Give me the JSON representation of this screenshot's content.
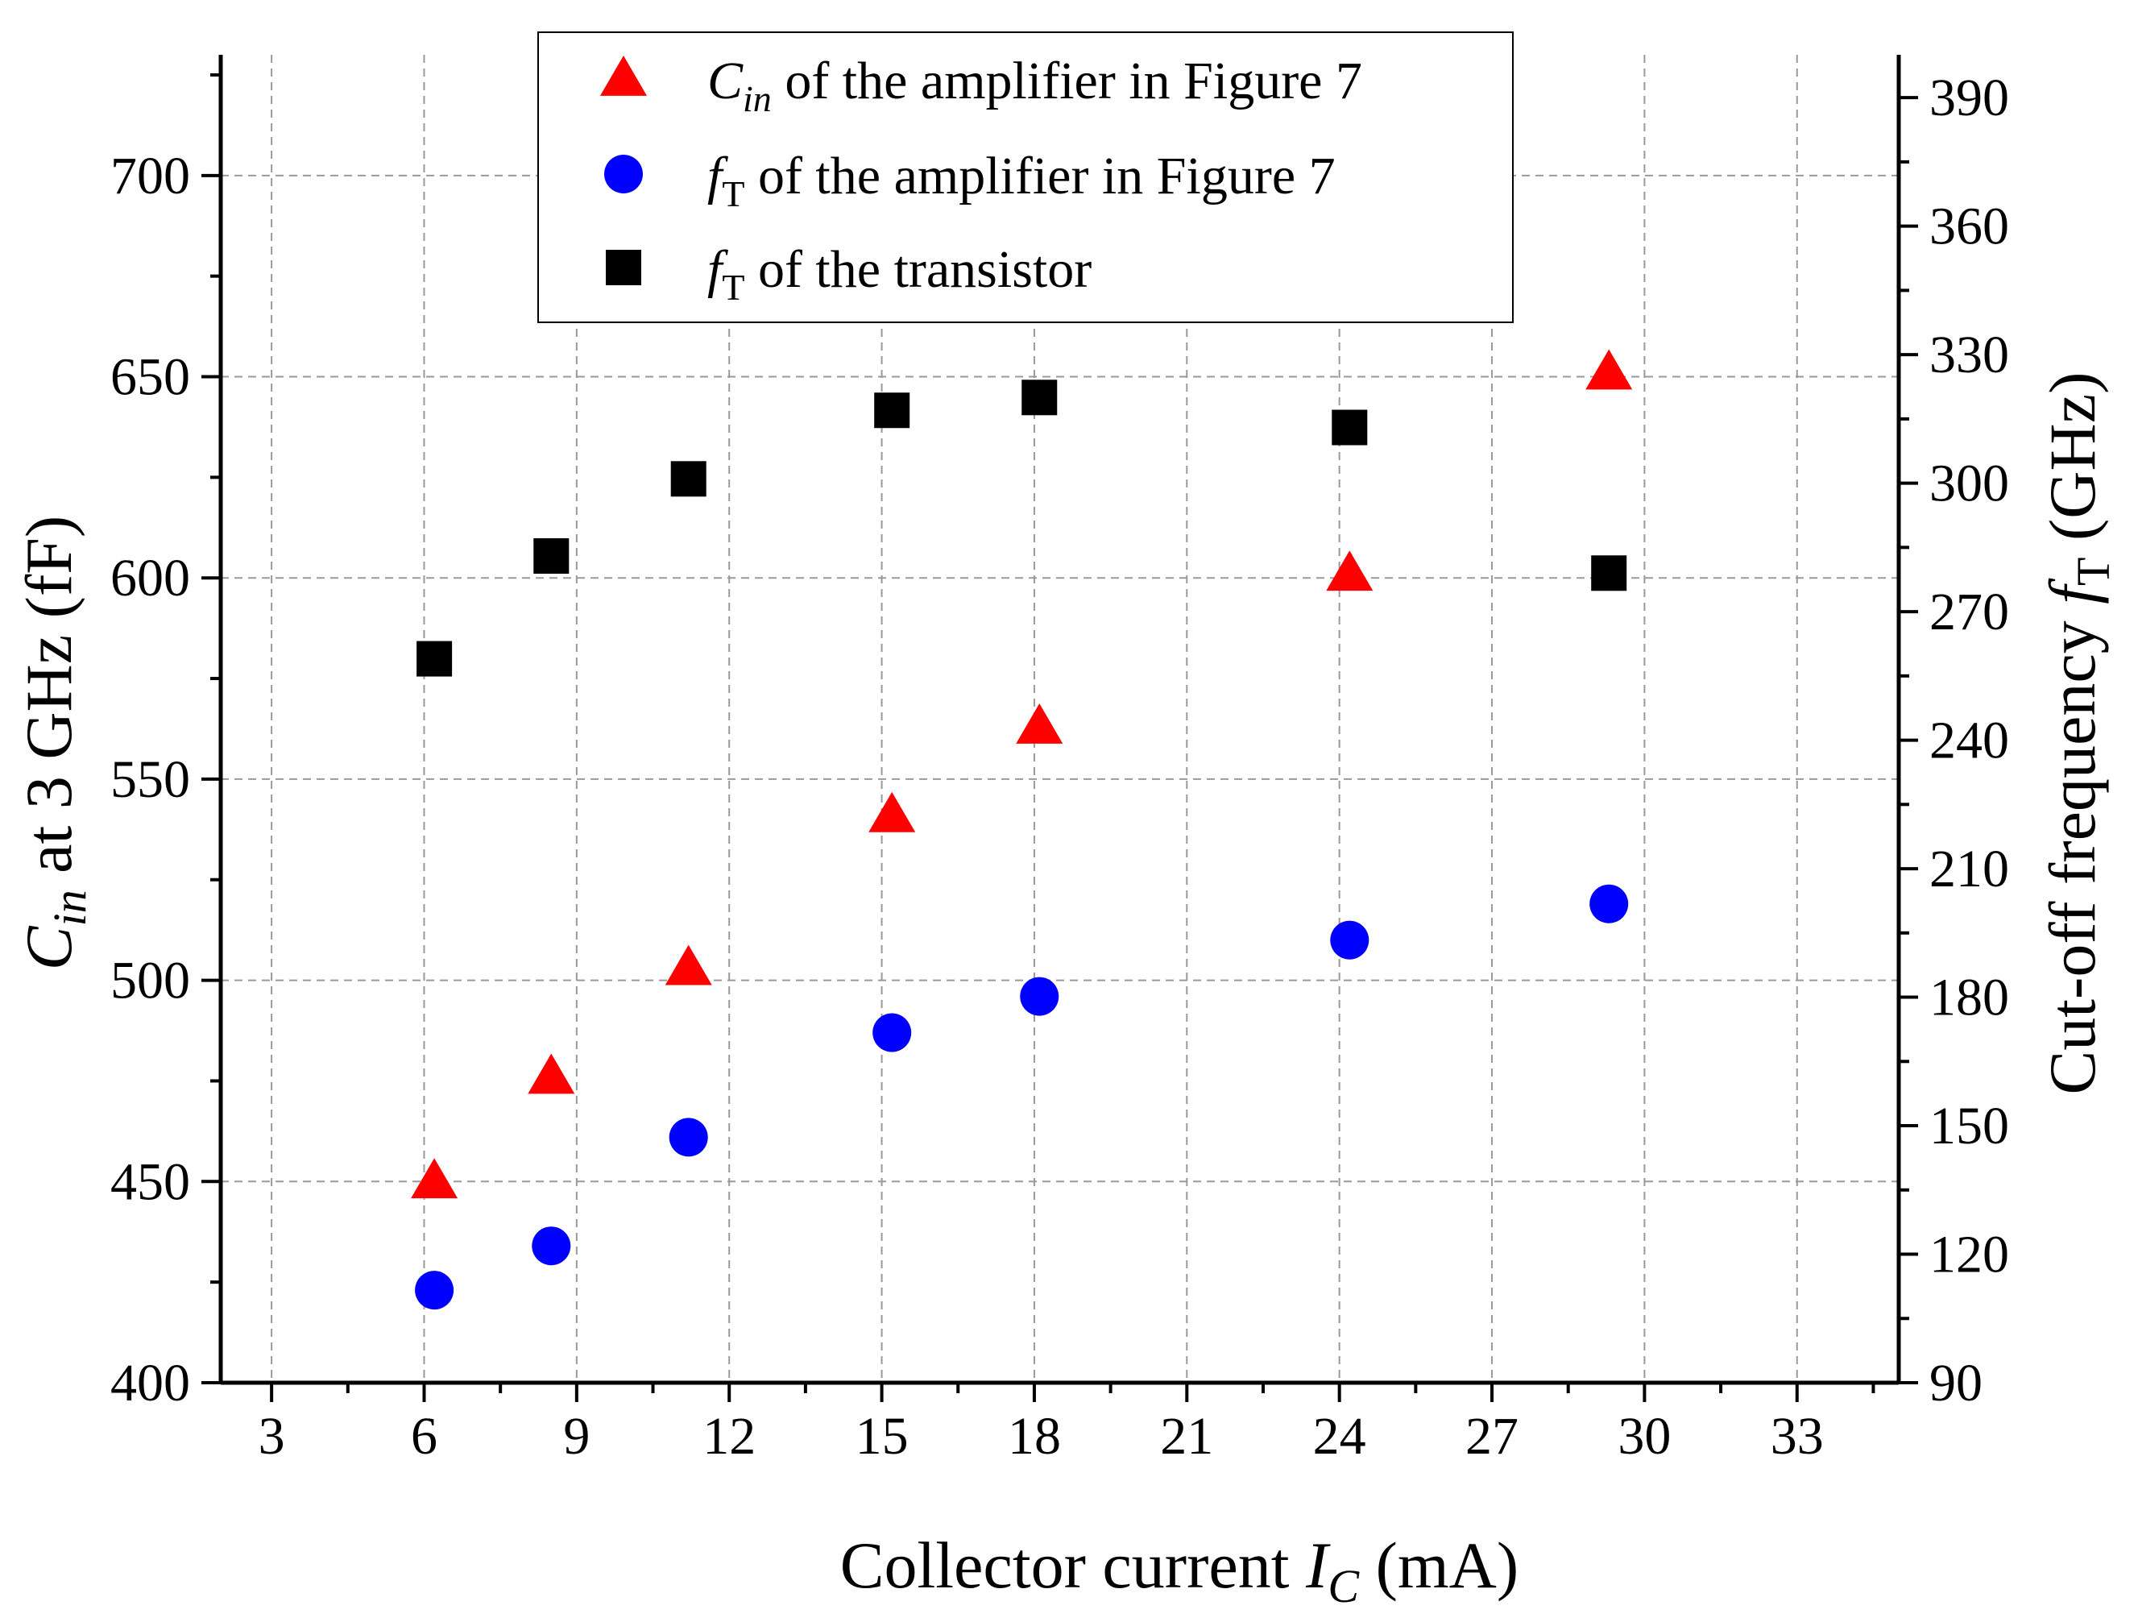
{
  "chart_data": {
    "type": "scatter",
    "xlabel": "Collector current I_C (mA)",
    "ylabel_left": "C_in at 3 GHz (fF)",
    "ylabel_right": "Cut-off frequency f_T (GHz)",
    "xlim": [
      2,
      35
    ],
    "x_ticks": [
      3,
      6,
      9,
      12,
      15,
      18,
      21,
      24,
      27,
      30,
      33
    ],
    "ylim_left": [
      400,
      730
    ],
    "y_ticks_left": [
      400,
      450,
      500,
      550,
      600,
      650,
      700
    ],
    "ylim_right": [
      90,
      400
    ],
    "y_ticks_right": [
      90,
      120,
      150,
      180,
      210,
      240,
      270,
      300,
      330,
      360,
      390
    ],
    "grid": true,
    "legend_position": "top-center",
    "series": [
      {
        "name": "C_in of the amplifier in Figure 7",
        "axis": "left",
        "marker": "triangle",
        "color": "#ff0000",
        "x": [
          6.2,
          8.5,
          11.2,
          15.2,
          18.1,
          24.2,
          29.3
        ],
        "y": [
          450,
          476,
          503,
          541,
          563,
          601,
          651
        ]
      },
      {
        "name": "f_T of the amplifier in Figure 7",
        "axis": "left",
        "marker": "circle",
        "color": "#0000ff",
        "x": [
          6.2,
          8.5,
          11.2,
          15.2,
          18.1,
          24.2,
          29.3
        ],
        "y": [
          423,
          434,
          461,
          487,
          496,
          510,
          519
        ]
      },
      {
        "name": "f_T of the transistor",
        "axis": "right",
        "marker": "square",
        "color": "#000000",
        "x": [
          6.2,
          8.5,
          11.2,
          15.2,
          18.1,
          24.2,
          29.3
        ],
        "y": [
          259,
          283,
          301,
          317,
          320,
          313,
          279
        ]
      }
    ]
  },
  "legend": {
    "items": [
      {
        "symbol": "triangle",
        "color": "#ff0000",
        "main": "C",
        "sub": "in",
        "rest": " of the amplifier in Figure 7",
        "italic_sub": true
      },
      {
        "symbol": "circle",
        "color": "#0000ff",
        "main": "f",
        "sub": "T",
        "rest": " of the amplifier in Figure 7",
        "italic_sub": false
      },
      {
        "symbol": "square",
        "color": "#000000",
        "main": "f",
        "sub": "T",
        "rest": " of the transistor",
        "italic_sub": false
      }
    ]
  },
  "axis_titles": {
    "x": {
      "pre": "Collector current ",
      "var": "I",
      "sub": "C",
      "post": " (mA)"
    },
    "y_left": {
      "var": "C",
      "sub": "in",
      "post": " at 3 GHz (fF)"
    },
    "y_right": {
      "pre": "Cut-off frequency ",
      "var": "f",
      "sub": "T",
      "post": " (GHz)"
    }
  }
}
